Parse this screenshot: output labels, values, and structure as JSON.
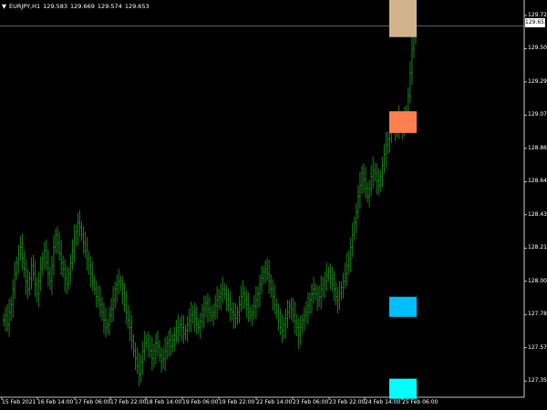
{
  "header": {
    "dropdown_icon": "triangle-down-icon",
    "symbol": "EURJPY,H1",
    "quotes": [
      "129.583",
      "129.669",
      "129.574",
      "129.653"
    ]
  },
  "current_price": "129.653",
  "colors": {
    "background": "#000000",
    "bars": "#1e8f1e",
    "price_line": "#9a9a9a",
    "zone_top": "#d2b48c",
    "zone_upper": "#ff7f50",
    "zone_lower": "#00bfff",
    "zone_bottom": "#00ffff"
  },
  "chart_data": {
    "type": "bar",
    "symbol": "EURJPY",
    "timeframe": "H1",
    "y_ticks": [
      "129.720",
      "129.505",
      "129.290",
      "129.075",
      "128.860",
      "128.645",
      "128.430",
      "128.215",
      "128.000",
      "127.785",
      "127.570",
      "127.355"
    ],
    "ylim": [
      127.25,
      129.82
    ],
    "x_ticks": [
      "15 Feb 2021",
      "16 Feb 14:00",
      "17 Feb 06:00",
      "17 Feb 22:00",
      "18 Feb 14:00",
      "19 Feb 06:00",
      "19 Feb 22:00",
      "22 Feb 14:00",
      "23 Feb 06:00",
      "23 Feb 22:00",
      "24 Feb 14:00",
      "25 Feb 06:00"
    ],
    "zones": [
      {
        "color": "tan",
        "low": 129.58,
        "high": 129.82
      },
      {
        "color": "coral",
        "low": 128.96,
        "high": 129.1
      },
      {
        "color": "deepskyblue",
        "low": 127.77,
        "high": 127.9
      },
      {
        "color": "cyan",
        "low": 127.24,
        "high": 127.37
      }
    ],
    "closes": [
      127.75,
      127.78,
      127.72,
      127.8,
      127.85,
      127.95,
      128.05,
      128.12,
      128.18,
      128.22,
      128.15,
      128.08,
      128.0,
      127.95,
      128.02,
      128.1,
      128.05,
      127.98,
      127.92,
      128.0,
      128.08,
      128.15,
      128.2,
      128.12,
      128.05,
      128.0,
      128.1,
      128.22,
      128.3,
      128.25,
      128.18,
      128.12,
      128.08,
      128.02,
      127.98,
      128.05,
      128.12,
      128.2,
      128.28,
      128.32,
      128.38,
      128.35,
      128.3,
      128.25,
      128.2,
      128.15,
      128.1,
      128.05,
      128.0,
      127.95,
      127.9,
      127.88,
      127.85,
      127.8,
      127.75,
      127.7,
      127.72,
      127.78,
      127.82,
      127.88,
      127.95,
      127.98,
      128.0,
      127.98,
      127.92,
      127.85,
      127.8,
      127.75,
      127.7,
      127.62,
      127.55,
      127.5,
      127.45,
      127.4,
      127.48,
      127.55,
      127.6,
      127.62,
      127.58,
      127.55,
      127.5,
      127.55,
      127.6,
      127.58,
      127.52,
      127.48,
      127.5,
      127.55,
      127.6,
      127.62,
      127.58,
      127.62,
      127.65,
      127.68,
      127.7,
      127.72,
      127.7,
      127.66,
      127.68,
      127.72,
      127.75,
      127.78,
      127.8,
      127.76,
      127.72,
      127.7,
      127.74,
      127.78,
      127.82,
      127.86,
      127.82,
      127.8,
      127.78,
      127.8,
      127.84,
      127.88,
      127.9,
      127.92,
      127.95,
      127.92,
      127.88,
      127.85,
      127.82,
      127.8,
      127.78,
      127.76,
      127.8,
      127.85,
      127.9,
      127.92,
      127.88,
      127.85,
      127.8,
      127.78,
      127.8,
      127.84,
      127.88,
      127.92,
      127.98,
      128.02,
      128.06,
      128.08,
      128.05,
      128.0,
      127.95,
      127.9,
      127.85,
      127.8,
      127.75,
      127.7,
      127.68,
      127.72,
      127.76,
      127.8,
      127.84,
      127.82,
      127.78,
      127.74,
      127.7,
      127.65,
      127.7,
      127.75,
      127.78,
      127.8,
      127.84,
      127.88,
      127.92,
      127.95,
      127.92,
      127.88,
      127.9,
      127.95,
      127.98,
      128.0,
      128.04,
      128.06,
      128.02,
      127.98,
      127.95,
      127.9,
      127.88,
      127.92,
      127.96,
      128.0,
      128.05,
      128.1,
      128.15,
      128.22,
      128.3,
      128.38,
      128.45,
      128.55,
      128.62,
      128.7,
      128.66,
      128.6,
      128.55,
      128.6,
      128.68,
      128.72,
      128.7,
      128.65,
      128.62,
      128.68,
      128.75,
      128.82,
      128.88,
      128.92,
      128.96,
      129.0,
      129.02,
      128.98,
      129.0,
      129.05,
      129.02,
      129.0,
      129.05,
      129.1,
      129.2,
      129.35,
      129.5,
      129.62,
      129.653
    ]
  }
}
